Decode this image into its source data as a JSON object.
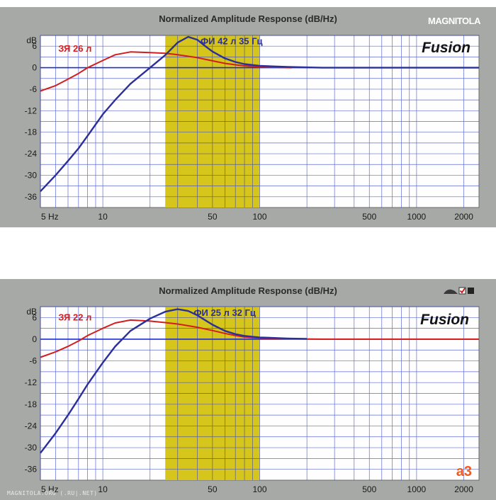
{
  "watermark": {
    "logo_text": "MAGNITOLA",
    "footer_text": "MAGNITOLA.ORG (.RU|.NET)"
  },
  "colors": {
    "panel": "#a7a9a6",
    "plot_bg": "#fefefe",
    "grid": "#2a3ac8",
    "band": "#d6c51a",
    "red_series": "#d21e1e",
    "blue_series": "#2c2f9a",
    "zero_line": "#1e2bd0",
    "brand_text": "#141414",
    "a3_logo": "#ee5a22"
  },
  "chart_data": [
    {
      "type": "line",
      "title": "Normalized Amplitude Response (dB/Hz)",
      "ylabel": "dB",
      "xlabel": "",
      "x_scale": "log",
      "xlim": [
        4,
        2500
      ],
      "ylim": [
        -39,
        9
      ],
      "x_ticks": [
        5,
        10,
        50,
        100,
        500,
        1000,
        2000
      ],
      "x_tick_labels": [
        "5 Hz",
        "10",
        "50",
        "100",
        "500",
        "1000",
        "2000"
      ],
      "y_ticks": [
        6,
        0,
        -6,
        -12,
        -18,
        -24,
        -30,
        -36
      ],
      "y_tick_labels": [
        "6",
        "0",
        "-6",
        "-12",
        "-18",
        "-24",
        "-30",
        "-36"
      ],
      "grid": true,
      "highlight_band": [
        25,
        100
      ],
      "brand_label": "Fusion",
      "series": [
        {
          "name": "ЗЯ 26 л",
          "color": "#d21e1e",
          "x": [
            4,
            5,
            6,
            7,
            8,
            10,
            12,
            15,
            20,
            25,
            30,
            40,
            50,
            60,
            70,
            80,
            100,
            130,
            160
          ],
          "y": [
            -6.5,
            -5,
            -3.2,
            -1.6,
            0,
            2,
            3.6,
            4.4,
            4.2,
            4,
            3.6,
            2.8,
            1.9,
            1.2,
            0.8,
            0.5,
            0.2,
            0.1,
            0
          ]
        },
        {
          "name": "ФИ 42 л 35 Гц",
          "color": "#2c2f9a",
          "x": [
            4,
            5,
            6,
            7,
            8,
            10,
            12,
            15,
            20,
            25,
            30,
            35,
            40,
            45,
            50,
            60,
            70,
            80,
            100,
            150,
            250,
            500,
            1000,
            2500
          ],
          "y": [
            -34.5,
            -30,
            -26,
            -22.5,
            -19,
            -13,
            -9,
            -4.5,
            0,
            3.5,
            7,
            8.6,
            7.8,
            6,
            4.5,
            2.6,
            1.6,
            1,
            0.5,
            0.2,
            0,
            0,
            0,
            0
          ]
        }
      ]
    },
    {
      "type": "line",
      "title": "Normalized Amplitude Response (dB/Hz)",
      "ylabel": "dB",
      "xlabel": "",
      "x_scale": "log",
      "xlim": [
        4,
        2500
      ],
      "ylim": [
        -39,
        9
      ],
      "x_ticks": [
        5,
        10,
        50,
        100,
        500,
        1000,
        2000
      ],
      "x_tick_labels": [
        "5 Hz",
        "10",
        "50",
        "100",
        "500",
        "1000",
        "2000"
      ],
      "y_ticks": [
        6,
        0,
        -6,
        -12,
        -18,
        -24,
        -30,
        -36
      ],
      "y_tick_labels": [
        "6",
        "0",
        "-6",
        "-12",
        "-18",
        "-24",
        "-30",
        "-36"
      ],
      "grid": true,
      "highlight_band": [
        25,
        100
      ],
      "brand_label": "Fusion",
      "corner_logo": "a3",
      "series": [
        {
          "name": "ЗЯ 22 л",
          "color": "#d21e1e",
          "x": [
            4,
            5,
            6,
            7,
            8,
            10,
            12,
            15,
            20,
            25,
            30,
            40,
            50,
            60,
            70,
            80,
            100,
            150,
            250,
            500,
            1000,
            2500
          ],
          "y": [
            -5,
            -3.5,
            -2,
            -0.5,
            1,
            3,
            4.5,
            5.3,
            5,
            4.6,
            4.2,
            3.3,
            2.4,
            1.6,
            1,
            0.6,
            0.3,
            0.1,
            0,
            0,
            0,
            0
          ]
        },
        {
          "name": "ФИ 25 л 32 Гц",
          "color": "#2c2f9a",
          "x": [
            4,
            5,
            6,
            7,
            8,
            10,
            12,
            15,
            20,
            25,
            30,
            35,
            40,
            50,
            60,
            70,
            80,
            100,
            150,
            200
          ],
          "y": [
            -31.5,
            -26,
            -21,
            -16.5,
            -12.5,
            -6.5,
            -2,
            2.3,
            5.7,
            7.6,
            8.3,
            7.8,
            6.6,
            4,
            2.3,
            1.4,
            0.9,
            0.5,
            0.2,
            0.1
          ]
        }
      ]
    }
  ]
}
